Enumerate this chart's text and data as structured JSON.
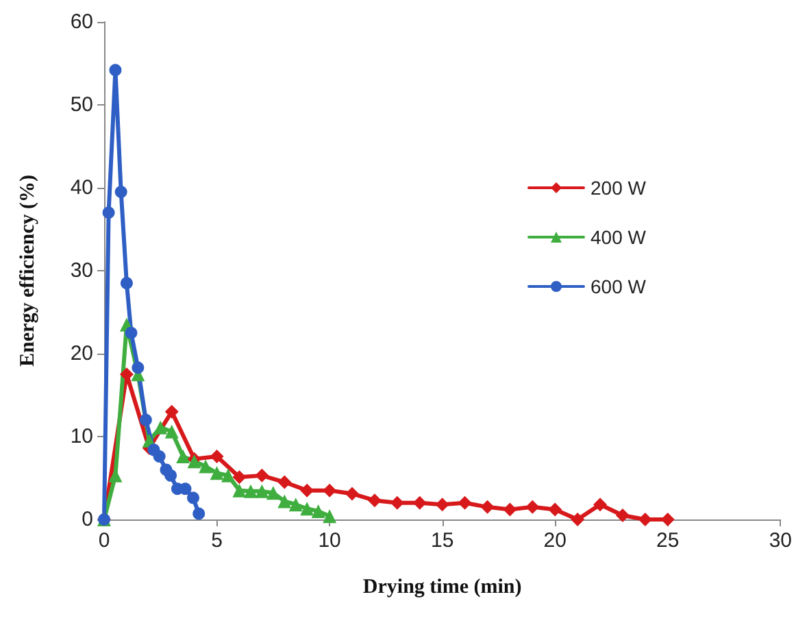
{
  "chart_data": {
    "type": "line",
    "xlabel": "Drying time (min)",
    "ylabel": "Energy efficiency (%)",
    "xlim": [
      0,
      30
    ],
    "ylim": [
      0,
      60
    ],
    "xticks": [
      0,
      5,
      10,
      15,
      20,
      25,
      30
    ],
    "yticks": [
      0,
      10,
      20,
      30,
      40,
      50,
      60
    ],
    "grid": false,
    "legend": "top right",
    "series": [
      {
        "name": "200 W",
        "color": "#d7191c",
        "marker": "diamond",
        "x": [
          0,
          1,
          2,
          3,
          4,
          5,
          6,
          7,
          8,
          9,
          10,
          11,
          12,
          13,
          14,
          15,
          16,
          17,
          18,
          19,
          20,
          21,
          22,
          23,
          24,
          25
        ],
        "values": [
          0,
          17.5,
          8.6,
          13,
          7.3,
          7.6,
          5.1,
          5.3,
          4.5,
          3.5,
          3.5,
          3.1,
          2.3,
          2,
          2,
          1.8,
          2,
          1.5,
          1.2,
          1.5,
          1.2,
          0,
          1.8,
          0.5,
          0,
          0
        ]
      },
      {
        "name": "400 W",
        "color": "#3fae3f",
        "marker": "triangle",
        "x": [
          0,
          0.5,
          1,
          1.5,
          2,
          2.5,
          3,
          3.5,
          4,
          4.5,
          5,
          5.5,
          6,
          6.5,
          7,
          7.5,
          8,
          8.5,
          9,
          9.5,
          10
        ],
        "values": [
          0,
          5.3,
          23.5,
          17.5,
          9.5,
          11.1,
          10.6,
          7.6,
          7,
          6.4,
          5.6,
          5.3,
          3.5,
          3.4,
          3.4,
          3.2,
          2.2,
          1.8,
          1.3,
          1,
          0.4
        ]
      },
      {
        "name": "600 W",
        "color": "#2f5fc4",
        "marker": "circle",
        "x": [
          0,
          0.2,
          0.5,
          0.75,
          1,
          1.2,
          1.5,
          1.85,
          2.2,
          2.45,
          2.75,
          2.95,
          3.25,
          3.6,
          3.95,
          4.2
        ],
        "values": [
          0,
          37,
          54.2,
          39.5,
          28.5,
          22.5,
          18.3,
          12,
          8.4,
          7.6,
          6,
          5.3,
          3.7,
          3.7,
          2.6,
          0.7
        ]
      }
    ]
  }
}
